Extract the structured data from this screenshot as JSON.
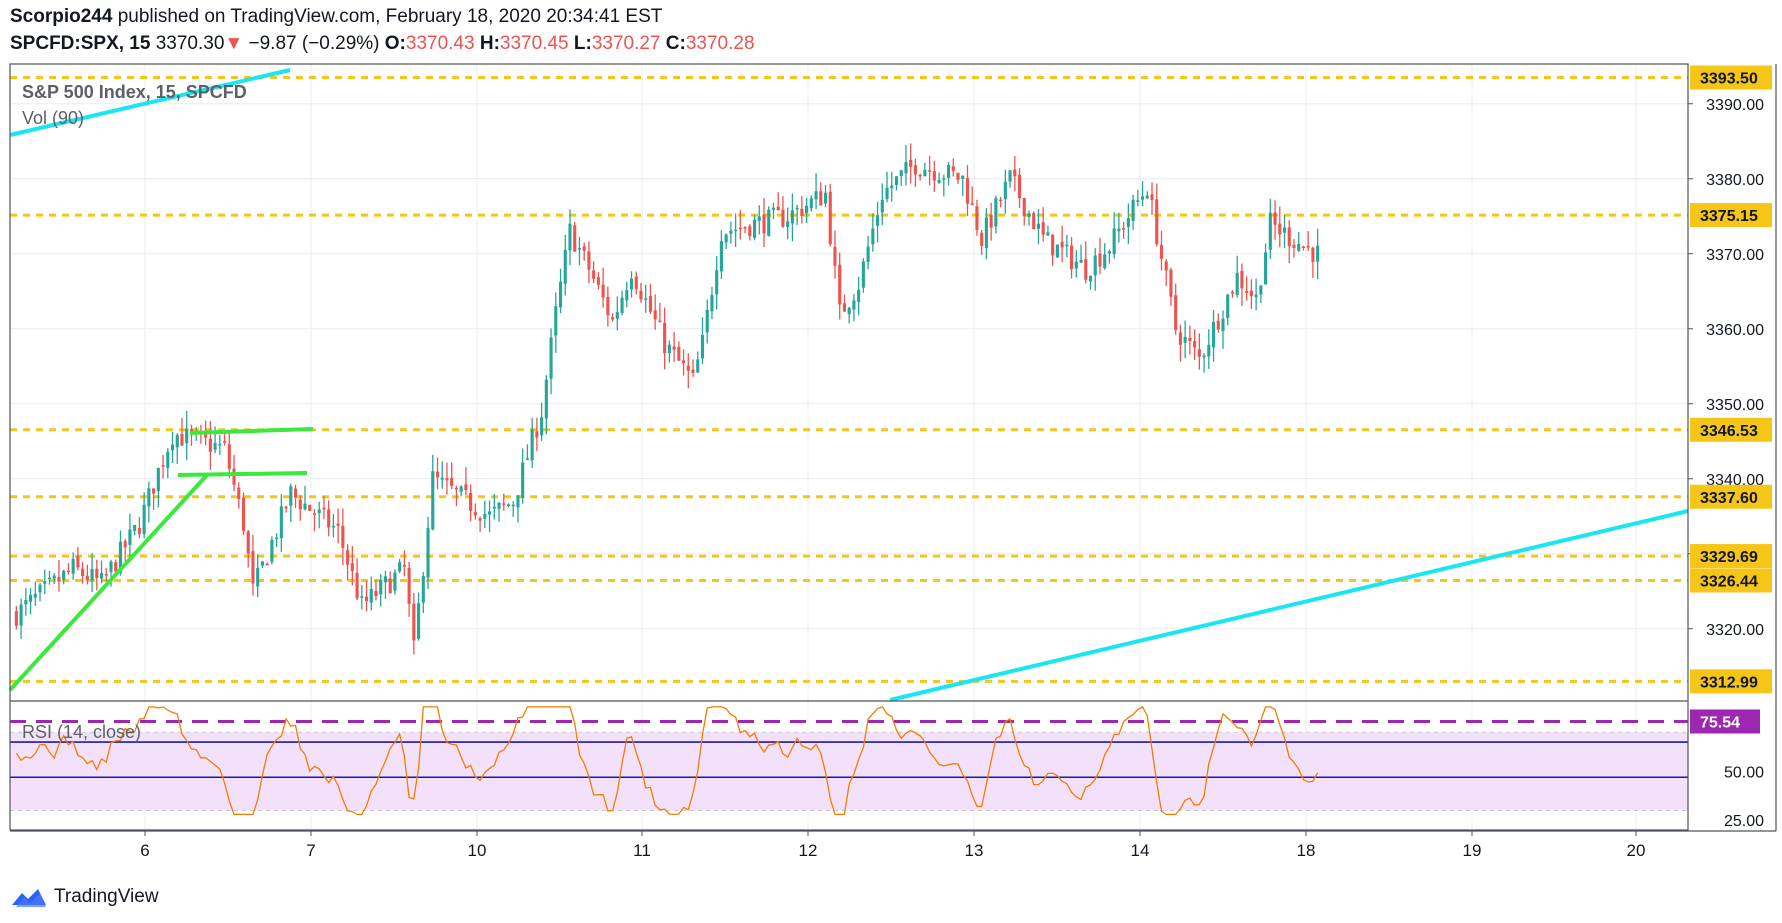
{
  "header": {
    "author": "Scorpio244",
    "published_text": "published on TradingView.com, February 18, 2020 20:34:41 EST",
    "symbol": "SPCFD:SPX, 15",
    "last": "3370.30",
    "change_arrow": "▼",
    "change": "−9.87 (−0.29%)",
    "open_label": "O:",
    "open": "3370.43",
    "high_label": "H:",
    "high": "3370.45",
    "low_label": "L:",
    "low": "3370.27",
    "close_label": "C:",
    "close": "3370.28"
  },
  "legend": {
    "main": "S&P 500 Index, 15, SPCFD",
    "volume": "Vol (90)",
    "rsi": "RSI (14, close)"
  },
  "footer": {
    "brand": "TradingView"
  },
  "colors": {
    "up": "#26a69a",
    "down": "#ef5350",
    "level": "#f5c518",
    "trend_cyan": "#19e6f0",
    "trend_green": "#3be83b",
    "rsi_line": "#f57c00",
    "rsi_band": "#f3e1fb",
    "rsi_purple": "#9c27b0",
    "rsi_blue": "#1a1aa8",
    "label_bg": "#f5c518",
    "rsi_label_bg": "#9c27b0"
  },
  "chart_data": {
    "type": "candlestick",
    "ylim": [
      3310.5,
      3395.3
    ],
    "y_ticks": [
      3320,
      3330,
      3340,
      3350,
      3360,
      3370,
      3380,
      3390
    ],
    "y_tick_labels": [
      "3320.00",
      "3330.00",
      "3340.00",
      "3350.00",
      "3360.00",
      "3370.00",
      "3380.00",
      "3390.00"
    ],
    "x_ticks": [
      "6",
      "7",
      "10",
      "11",
      "12",
      "13",
      "14",
      "18",
      "19",
      "20"
    ],
    "levels": [
      3393.5,
      3375.15,
      3346.53,
      3337.6,
      3329.69,
      3326.44,
      3312.99
    ],
    "level_labels": [
      "3393.50",
      "3375.15",
      "3346.53",
      "3337.60",
      "3329.69",
      "3326.44",
      "3312.99"
    ],
    "rsi": {
      "ylim": [
        20,
        85
      ],
      "tick_labels": [
        "50.00",
        "25.00"
      ],
      "overbought": 75.54,
      "overbought_label": "75.54",
      "band": [
        30,
        70
      ],
      "upper_line": 65,
      "lower_line": 47
    },
    "anchors": [
      [
        0,
        3322
      ],
      [
        12,
        3328
      ],
      [
        18,
        3326
      ],
      [
        26,
        3334
      ],
      [
        30,
        3341
      ],
      [
        33,
        3346
      ],
      [
        44,
        3344
      ],
      [
        48,
        3334
      ],
      [
        50,
        3325
      ],
      [
        58,
        3338
      ],
      [
        68,
        3333
      ],
      [
        73,
        3323
      ],
      [
        82,
        3328
      ],
      [
        84,
        3317
      ],
      [
        88,
        3340
      ],
      [
        100,
        3335
      ],
      [
        105,
        3337
      ],
      [
        111,
        3349
      ],
      [
        114,
        3362
      ],
      [
        117,
        3373
      ],
      [
        121,
        3368
      ],
      [
        126,
        3361
      ],
      [
        130,
        3368
      ],
      [
        137,
        3358
      ],
      [
        143,
        3353
      ],
      [
        145,
        3358
      ],
      [
        149,
        3373
      ],
      [
        163,
        3375
      ],
      [
        171,
        3378
      ],
      [
        174,
        3362
      ],
      [
        178,
        3366
      ],
      [
        183,
        3378
      ],
      [
        190,
        3382
      ],
      [
        200,
        3380
      ],
      [
        204,
        3372
      ],
      [
        210,
        3380
      ],
      [
        217,
        3372
      ],
      [
        226,
        3368
      ],
      [
        231,
        3371
      ],
      [
        239,
        3379
      ],
      [
        245,
        3360
      ],
      [
        250,
        3356
      ],
      [
        258,
        3367
      ],
      [
        262,
        3364
      ],
      [
        265,
        3374
      ],
      [
        272,
        3371
      ],
      [
        275,
        3370
      ]
    ]
  }
}
